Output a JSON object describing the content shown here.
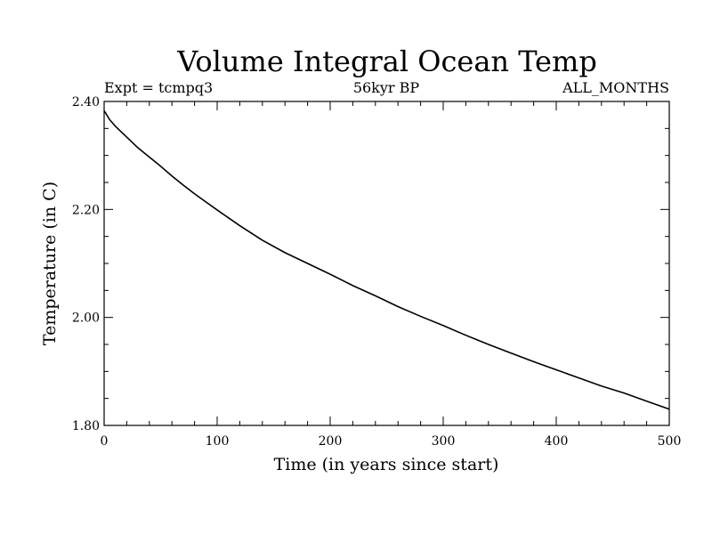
{
  "chart_data": {
    "type": "line",
    "title": "Volume Integral Ocean Temp",
    "subtitle_left": "Expt = tcmpq3",
    "subtitle_center": "56kyr BP",
    "subtitle_right": "ALL_MONTHS",
    "xlabel": "Time (in years since start)",
    "ylabel": "Temperature (in C)",
    "xlim": [
      0,
      500
    ],
    "ylim": [
      1.8,
      2.4
    ],
    "x_ticks": [
      0,
      100,
      200,
      300,
      400,
      500
    ],
    "x_tick_labels": [
      "0",
      "100",
      "200",
      "300",
      "400",
      "500"
    ],
    "y_ticks": [
      1.8,
      2.0,
      2.2,
      2.4
    ],
    "y_tick_labels": [
      "1.80",
      "2.00",
      "2.20",
      "2.40"
    ],
    "grid": false,
    "line_color": "#000000",
    "series": [
      {
        "x": [
          0,
          5,
          10,
          20,
          30,
          40,
          50,
          60,
          70,
          80,
          90,
          100,
          120,
          140,
          160,
          180,
          200,
          220,
          240,
          260,
          280,
          300,
          320,
          340,
          360,
          380,
          400,
          420,
          440,
          460,
          480,
          500
        ],
        "y": [
          2.383,
          2.366,
          2.354,
          2.334,
          2.314,
          2.297,
          2.28,
          2.262,
          2.245,
          2.229,
          2.214,
          2.199,
          2.17,
          2.143,
          2.12,
          2.1,
          2.08,
          2.059,
          2.04,
          2.02,
          2.002,
          1.985,
          1.967,
          1.95,
          1.934,
          1.918,
          1.903,
          1.888,
          1.873,
          1.86,
          1.845,
          1.83
        ]
      }
    ]
  }
}
